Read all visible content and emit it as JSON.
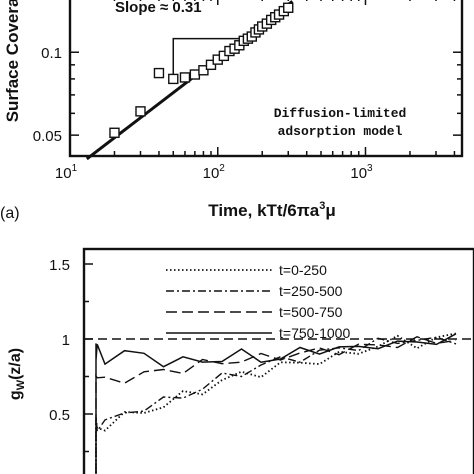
{
  "chart_data": [
    {
      "type": "scatter",
      "panel_label": "(a)",
      "xlabel_prefix": "Time, kTt/6πa",
      "xlabel_sup": "3",
      "xlabel_suffix": "μ",
      "ylabel": "Surface Coverage",
      "xscale": "log",
      "yscale": "log",
      "xlim": [
        10,
        4500
      ],
      "ylim": [
        0.042,
        0.16
      ],
      "x_ticks": [
        {
          "value": 10,
          "base": "10",
          "exp": "1"
        },
        {
          "value": 100,
          "base": "10",
          "exp": "2"
        },
        {
          "value": 1000,
          "base": "10",
          "exp": "3"
        }
      ],
      "y_ticks": [
        {
          "value": 0.05,
          "label": "0.05"
        },
        {
          "value": 0.1,
          "label": "0.1"
        }
      ],
      "slope_label": "Slope ≈ 0.31",
      "annotation": [
        "Diffusion-limited",
        "adsorption model"
      ],
      "fit_line": {
        "x": [
          13,
          320
        ],
        "y": [
          0.041,
          0.153
        ]
      },
      "slope_triangle": {
        "x1": 50,
        "x2": 150,
        "y1": 0.0795,
        "y2": 0.112
      },
      "series": [
        {
          "marker": "open-square",
          "x": [
            20,
            30,
            40,
            50,
            60,
            70,
            80,
            90,
            100,
            110,
            120,
            130,
            140,
            150,
            160,
            170,
            180,
            190,
            200,
            215,
            230,
            245,
            260,
            280,
            300
          ],
          "y": [
            0.051,
            0.061,
            0.084,
            0.08,
            0.081,
            0.083,
            0.086,
            0.09,
            0.094,
            0.097,
            0.101,
            0.103,
            0.106,
            0.11,
            0.112,
            0.114,
            0.118,
            0.121,
            0.124,
            0.127,
            0.131,
            0.134,
            0.137,
            0.141,
            0.145
          ]
        }
      ]
    },
    {
      "type": "line",
      "ylabel_main": "g",
      "ylabel_sub": "W",
      "ylabel_suffix": "(z/a)",
      "xlim": [
        0,
        1000
      ],
      "ylim": [
        0,
        1.6
      ],
      "y_ticks": [
        {
          "value": 0.5,
          "label": "0.5"
        },
        {
          "value": 1,
          "label": "1"
        },
        {
          "value": 1.5,
          "label": "1.5"
        }
      ],
      "reference_line": 1,
      "series": [
        {
          "name": "t=0-250",
          "style": "dotted",
          "x": [
            0,
            20,
            40,
            60,
            80,
            100,
            150,
            200,
            250,
            300,
            350,
            400,
            450,
            500,
            550,
            600,
            650,
            700,
            750,
            800,
            850,
            900,
            950,
            1000
          ],
          "y": [
            0.0,
            0.12,
            0.3,
            0.44,
            0.4,
            0.42,
            0.48,
            0.52,
            0.56,
            0.62,
            0.66,
            0.72,
            0.76,
            0.78,
            0.82,
            0.84,
            0.86,
            0.88,
            0.92,
            0.96,
            0.99,
            0.97,
            1.0,
            1.02
          ]
        },
        {
          "name": "t=250-500",
          "style": "dashdot",
          "x": [
            0,
            20,
            40,
            60,
            80,
            100,
            150,
            200,
            250,
            300,
            350,
            400,
            450,
            500,
            550,
            600,
            650,
            700,
            750,
            800,
            850,
            900,
            950,
            1000
          ],
          "y": [
            0.0,
            0.14,
            0.34,
            0.46,
            0.42,
            0.44,
            0.5,
            0.55,
            0.58,
            0.62,
            0.68,
            0.74,
            0.78,
            0.82,
            0.86,
            0.88,
            0.9,
            0.94,
            0.95,
            0.97,
            0.99,
            1.0,
            0.98,
            1.0
          ]
        },
        {
          "name": "t=500-750",
          "style": "dashed",
          "x": [
            0,
            20,
            40,
            60,
            80,
            100,
            150,
            200,
            250,
            300,
            350,
            400,
            450,
            500,
            550,
            600,
            650,
            700,
            750,
            800,
            850,
            900,
            950,
            1000
          ],
          "y": [
            0.0,
            0.3,
            0.6,
            0.78,
            0.74,
            0.72,
            0.74,
            0.76,
            0.79,
            0.8,
            0.83,
            0.85,
            0.86,
            0.87,
            0.89,
            0.9,
            0.92,
            0.93,
            0.94,
            0.96,
            0.97,
            0.98,
            0.99,
            1.0
          ]
        },
        {
          "name": "t=750-1000",
          "style": "solid",
          "x": [
            0,
            20,
            40,
            60,
            80,
            100,
            150,
            200,
            250,
            300,
            350,
            400,
            450,
            500,
            550,
            600,
            650,
            700,
            750,
            800,
            850,
            900,
            950,
            1000
          ],
          "y": [
            0.0,
            0.4,
            0.98,
            0.88,
            0.93,
            0.86,
            0.92,
            0.88,
            0.85,
            0.86,
            0.84,
            0.88,
            0.9,
            0.86,
            0.88,
            0.91,
            0.93,
            0.94,
            0.93,
            0.97,
            0.96,
            0.98,
            0.99,
            1.0
          ]
        }
      ]
    }
  ]
}
